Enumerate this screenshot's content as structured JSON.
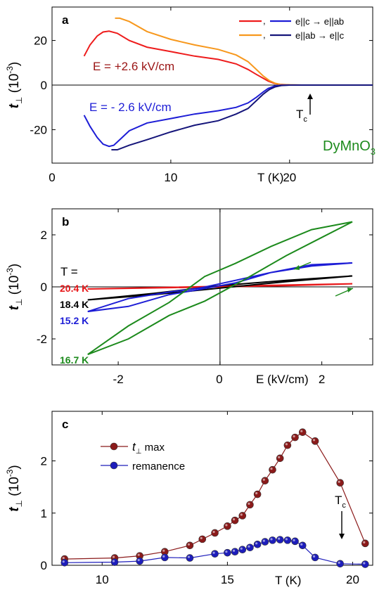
{
  "chart_data": [
    {
      "type": "line",
      "panel_label": "a",
      "xlabel": "T (K)",
      "ylabel": "t",
      "ylabel_sub": "⊥",
      "ylabel_unit_pre": "(10",
      "ylabel_unit_exp": "-3",
      "ylabel_unit_post": ")",
      "xlim": [
        0,
        27
      ],
      "ylim": [
        -35,
        35
      ],
      "xticks": [
        0,
        10,
        20
      ],
      "yticks": [
        -20,
        0,
        20
      ],
      "xticklabels": [
        "0",
        "10",
        "20"
      ],
      "yticklabels": [
        "-20",
        "0",
        "20"
      ],
      "legend": {
        "placement": "top-right",
        "entries": [
          {
            "sep": ",",
            "label": "e||c → e||ab",
            "colors": [
              "#ee1c1c",
              "#1d1dd6"
            ]
          },
          {
            "sep": ",",
            "label": "e||ab → e||c",
            "colors": [
              "#f7981d",
              "#15157a"
            ]
          }
        ]
      },
      "annotations": {
        "e_pos": "E = +2.6 kV/cm",
        "e_neg": "E = - 2.6 kV/cm",
        "tc": "T",
        "tc_sub": "c",
        "material": "DyMnO",
        "material_sub": "3"
      },
      "series": [
        {
          "color": "#ee1c1c",
          "x": [
            2.7,
            3.2,
            3.8,
            4.3,
            4.8,
            5.5,
            6.5,
            8,
            10,
            12,
            14,
            15.5,
            16.5,
            17.2,
            17.8,
            18.2,
            18.7,
            19.2,
            20,
            21,
            23,
            25,
            27
          ],
          "y": [
            13,
            18,
            22,
            23.8,
            24.2,
            23.2,
            20,
            17,
            15,
            13,
            11.5,
            9.5,
            7,
            4.8,
            3,
            1.8,
            0.8,
            0.3,
            0.1,
            0,
            0,
            0,
            0
          ]
        },
        {
          "color": "#f7981d",
          "x": [
            5.3,
            5.7,
            6.5,
            8,
            10,
            12,
            14,
            15.5,
            16.5,
            17.3,
            17.8,
            18.3,
            18.8,
            19.3,
            20,
            21,
            23,
            25,
            27
          ],
          "y": [
            30,
            30,
            28.5,
            24,
            20.5,
            18,
            16,
            13.5,
            10.5,
            6.5,
            4,
            2,
            0.8,
            0.2,
            0.1,
            0,
            0,
            0,
            0
          ]
        },
        {
          "color": "#1d1dd6",
          "x": [
            2.7,
            3.2,
            3.8,
            4.3,
            4.8,
            5.2,
            5.8,
            6.5,
            8,
            10,
            12,
            14,
            15.5,
            16.5,
            17.2,
            17.8,
            18.2,
            18.7,
            19.2,
            20,
            21,
            23,
            25,
            27
          ],
          "y": [
            -13.5,
            -18.5,
            -23.5,
            -26.5,
            -27.5,
            -27,
            -24,
            -20.5,
            -17,
            -15,
            -13,
            -11.5,
            -10,
            -8,
            -5.5,
            -3,
            -1.5,
            -0.5,
            -0.1,
            0,
            0,
            0,
            0,
            0
          ]
        },
        {
          "color": "#15157a",
          "x": [
            5.0,
            5.5,
            6.5,
            8,
            10,
            12,
            14,
            15.5,
            16.5,
            17.3,
            17.8,
            18.3,
            18.8,
            19.3,
            20,
            21,
            23,
            25,
            27
          ],
          "y": [
            -29,
            -29,
            -27,
            -24.5,
            -21,
            -18,
            -16,
            -13,
            -10.5,
            -6.5,
            -4,
            -2,
            -0.8,
            -0.2,
            0,
            0,
            0,
            0,
            0
          ]
        }
      ]
    },
    {
      "type": "line",
      "panel_label": "b",
      "xlabel": "E (kV/cm)",
      "ylabel": "t",
      "ylabel_sub": "⊥",
      "ylabel_unit_pre": "(10",
      "ylabel_unit_exp": "-3",
      "ylabel_unit_post": ")",
      "xlim": [
        -3.3,
        3.0
      ],
      "ylim": [
        -3.0,
        3.0
      ],
      "xticks": [
        -2,
        0,
        2
      ],
      "yticks": [
        -2,
        0,
        2
      ],
      "xticklabels": [
        "-2",
        "0",
        "2"
      ],
      "yticklabels": [
        "-2",
        "0",
        "2"
      ],
      "t_label": "T =",
      "series": [
        {
          "name": "20.4 K",
          "color": "#e8181a",
          "x": [
            -2.6,
            -1.3,
            0,
            1.3,
            2.6,
            1.3,
            0,
            -1.3,
            -2.6
          ],
          "y": [
            -0.08,
            -0.04,
            0,
            0.05,
            0.12,
            0.07,
            0.02,
            -0.03,
            -0.08
          ]
        },
        {
          "name": "18.4 K",
          "color": "#000000",
          "x": [
            -2.6,
            -1.3,
            0,
            1.3,
            2.6,
            1.3,
            0,
            -1.3,
            -2.6
          ],
          "y": [
            -0.5,
            -0.3,
            -0.05,
            0.2,
            0.42,
            0.25,
            0.05,
            -0.25,
            -0.5
          ]
        },
        {
          "name": "15.2 K",
          "color": "#1d1dd6",
          "x": [
            -2.6,
            -1.8,
            -1.0,
            -0.4,
            0.3,
            1.0,
            1.8,
            2.6,
            1.8,
            1.0,
            0.3,
            -0.4,
            -1.0,
            -1.8,
            -2.6
          ],
          "y": [
            -0.95,
            -0.75,
            -0.3,
            -0.1,
            0.15,
            0.55,
            0.8,
            0.92,
            0.85,
            0.55,
            0.25,
            -0.05,
            -0.2,
            -0.45,
            -0.95
          ]
        },
        {
          "name": "16.7 K",
          "color": "#1c8a1c",
          "x": [
            -2.6,
            -1.8,
            -1.0,
            -0.3,
            0.5,
            1.3,
            2.0,
            2.6,
            1.8,
            1.0,
            0.3,
            -0.3,
            -1.0,
            -1.8,
            -2.6
          ],
          "y": [
            -2.6,
            -2.0,
            -1.1,
            -0.55,
            0.3,
            1.2,
            1.9,
            2.5,
            2.2,
            1.55,
            0.9,
            0.4,
            -0.6,
            -1.5,
            -2.6
          ]
        }
      ]
    },
    {
      "type": "line",
      "panel_label": "c",
      "xlabel": "T (K)",
      "ylabel": "t",
      "ylabel_sub": "⊥",
      "ylabel_unit_pre": "(10",
      "ylabel_unit_exp": "-3",
      "ylabel_unit_post": ")",
      "xlim": [
        8.0,
        20.8
      ],
      "ylim": [
        0,
        2.95
      ],
      "xticks": [
        10,
        15,
        20
      ],
      "yticks": [
        0,
        1,
        2
      ],
      "xticklabels": [
        "10",
        "15",
        "20"
      ],
      "yticklabels": [
        "0",
        "1",
        "2"
      ],
      "annotations": {
        "tc": "T",
        "tc_sub": "c"
      },
      "legend": {
        "placement": "top-left"
      },
      "series": [
        {
          "name": "max",
          "name_prefix": "t",
          "name_sub": "⊥",
          "color": "#8b1a1a",
          "x": [
            8.5,
            10.5,
            11.5,
            12.5,
            13.5,
            14.0,
            14.5,
            15.0,
            15.3,
            15.6,
            15.9,
            16.2,
            16.5,
            16.8,
            17.1,
            17.4,
            17.7,
            18.0,
            18.5,
            19.5,
            20.5
          ],
          "y": [
            0.12,
            0.14,
            0.18,
            0.26,
            0.38,
            0.5,
            0.62,
            0.75,
            0.86,
            0.95,
            1.16,
            1.36,
            1.62,
            1.83,
            2.05,
            2.3,
            2.45,
            2.55,
            2.38,
            1.58,
            0.42
          ]
        },
        {
          "name": "remanence",
          "color": "#1d1dbb",
          "x": [
            8.5,
            10.5,
            11.5,
            12.5,
            13.5,
            14.5,
            15.0,
            15.3,
            15.6,
            15.9,
            16.2,
            16.5,
            16.8,
            17.1,
            17.4,
            17.7,
            18.0,
            18.5,
            19.5,
            20.5
          ],
          "y": [
            0.05,
            0.06,
            0.08,
            0.15,
            0.14,
            0.22,
            0.24,
            0.26,
            0.3,
            0.34,
            0.4,
            0.45,
            0.48,
            0.49,
            0.48,
            0.46,
            0.38,
            0.15,
            0.03,
            0.02
          ]
        }
      ]
    }
  ]
}
